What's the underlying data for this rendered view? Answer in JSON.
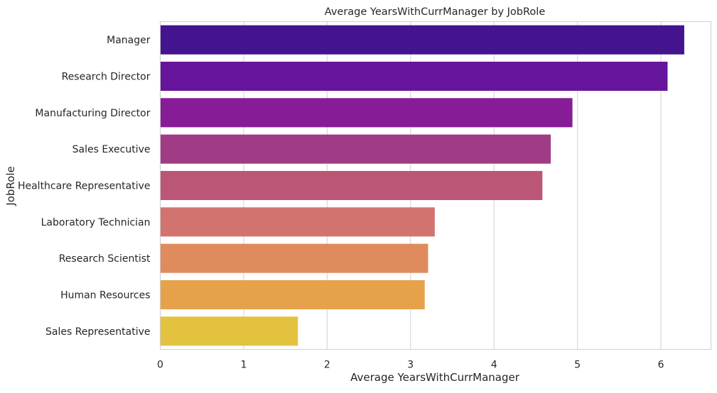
{
  "chart_data": {
    "type": "bar",
    "orientation": "horizontal",
    "title": "Average YearsWithCurrManager by JobRole",
    "xlabel": "Average YearsWithCurrManager",
    "ylabel": "JobRole",
    "xlim": [
      0,
      6.6
    ],
    "xticks": [
      0,
      1,
      2,
      3,
      4,
      5,
      6
    ],
    "grid": true,
    "categories": [
      "Manager",
      "Research Director",
      "Manufacturing Director",
      "Sales Executive",
      "Healthcare Representative",
      "Laboratory Technician",
      "Research Scientist",
      "Human Resources",
      "Sales Representative"
    ],
    "values": [
      6.28,
      6.08,
      4.94,
      4.68,
      4.58,
      3.29,
      3.21,
      3.17,
      1.65
    ],
    "colors": [
      "#43148d",
      "#66149b",
      "#871d96",
      "#a03c86",
      "#bc5676",
      "#d27370",
      "#e08b5e",
      "#e6a24a",
      "#e3c23f"
    ]
  }
}
